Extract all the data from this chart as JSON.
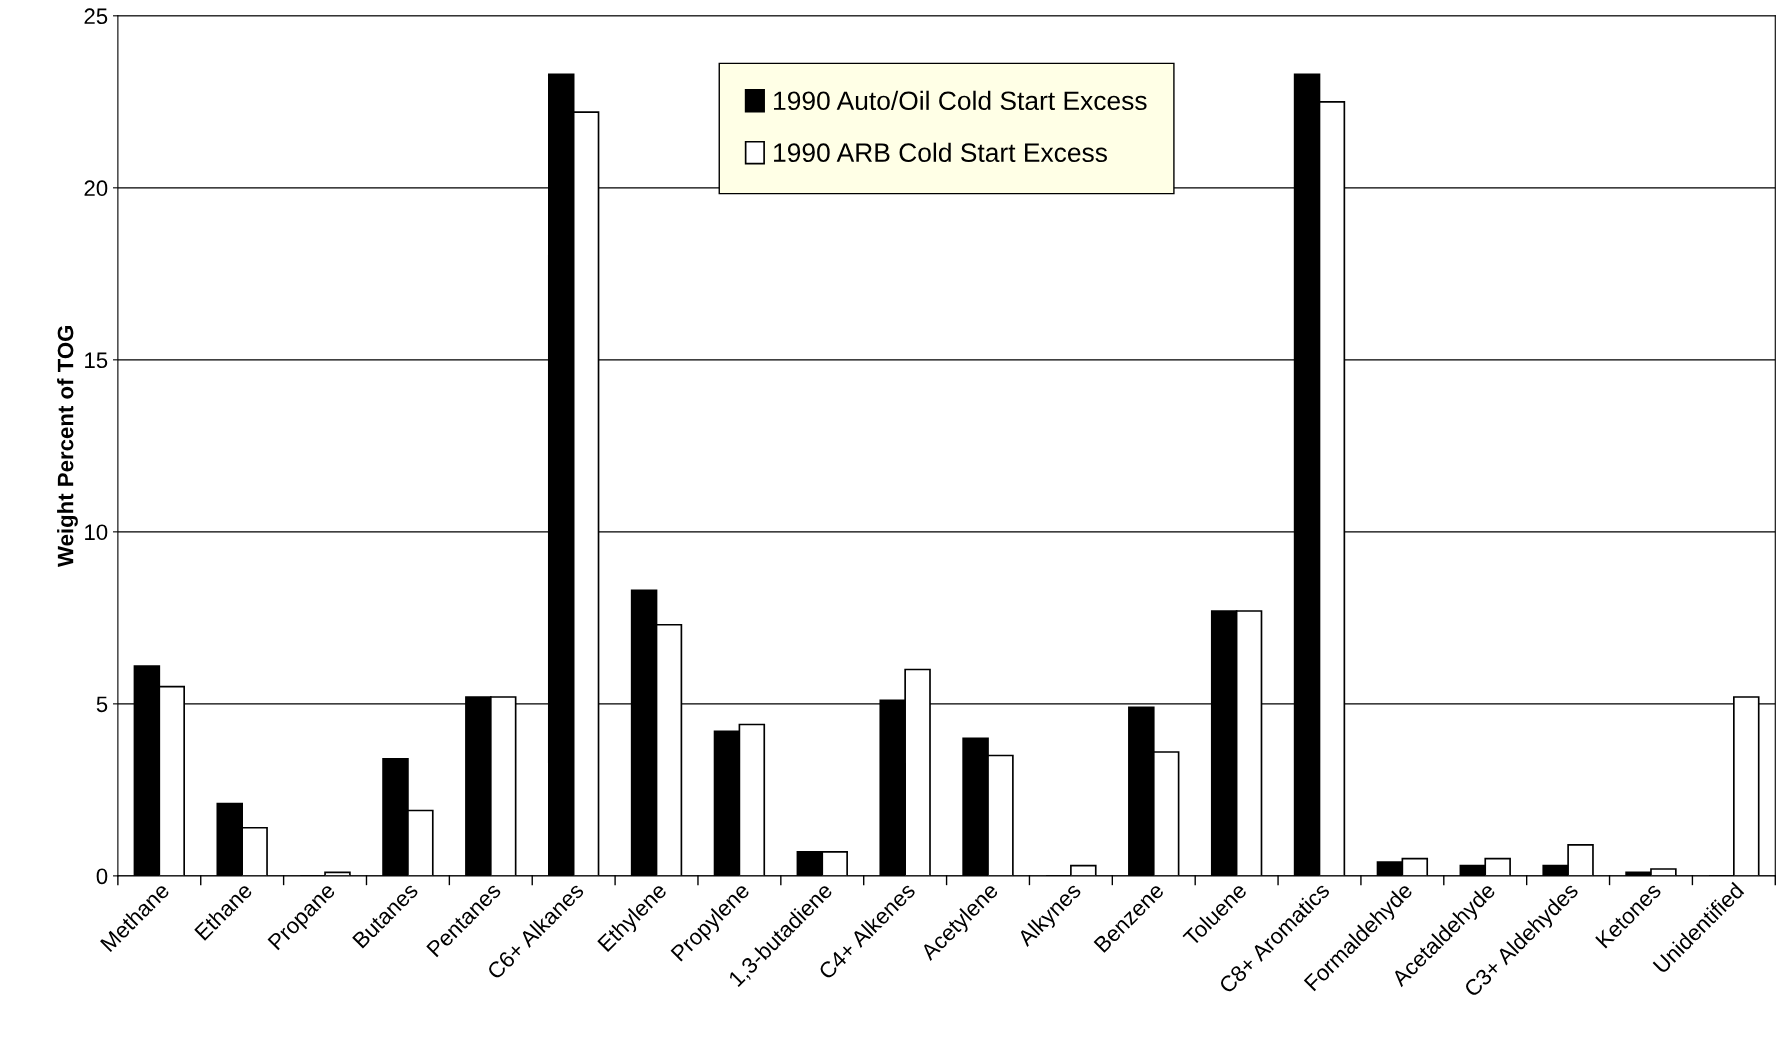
{
  "chart_data": {
    "type": "bar",
    "ylabel": "Weight Percent of TOG",
    "categories": [
      "Methane",
      "Ethane",
      "Propane",
      "Butanes",
      "Pentanes",
      "C6+ Alkanes",
      "Ethylene",
      "Propylene",
      "1,3-butadiene",
      "C4+ Alkenes",
      "Acetylene",
      "Alkynes",
      "Benzene",
      "Toluene",
      "C8+ Aromatics",
      "Formaldehyde",
      "Acetaldehyde",
      "C3+ Aldehydes",
      "Ketones",
      "Unidentified"
    ],
    "series": [
      {
        "name": "1990 Auto/Oil Cold Start Excess",
        "color": "#000000",
        "values": [
          6.1,
          2.1,
          0,
          3.4,
          5.2,
          23.3,
          8.3,
          4.2,
          0.7,
          5.1,
          4.0,
          0,
          4.9,
          7.7,
          23.3,
          0.4,
          0.3,
          0.3,
          0.1,
          0
        ]
      },
      {
        "name": "1990 ARB Cold Start Excess",
        "color": "#ffffff",
        "values": [
          5.5,
          1.4,
          0.1,
          1.9,
          5.2,
          22.2,
          7.3,
          4.4,
          0.7,
          6.0,
          3.5,
          0.3,
          3.6,
          7.7,
          22.5,
          0.5,
          0.5,
          0.9,
          0.2,
          5.2
        ]
      }
    ],
    "ylim": [
      0,
      25
    ],
    "yticks": [
      0,
      5,
      10,
      15,
      20,
      25
    ],
    "grid": "y",
    "legend": "top"
  }
}
